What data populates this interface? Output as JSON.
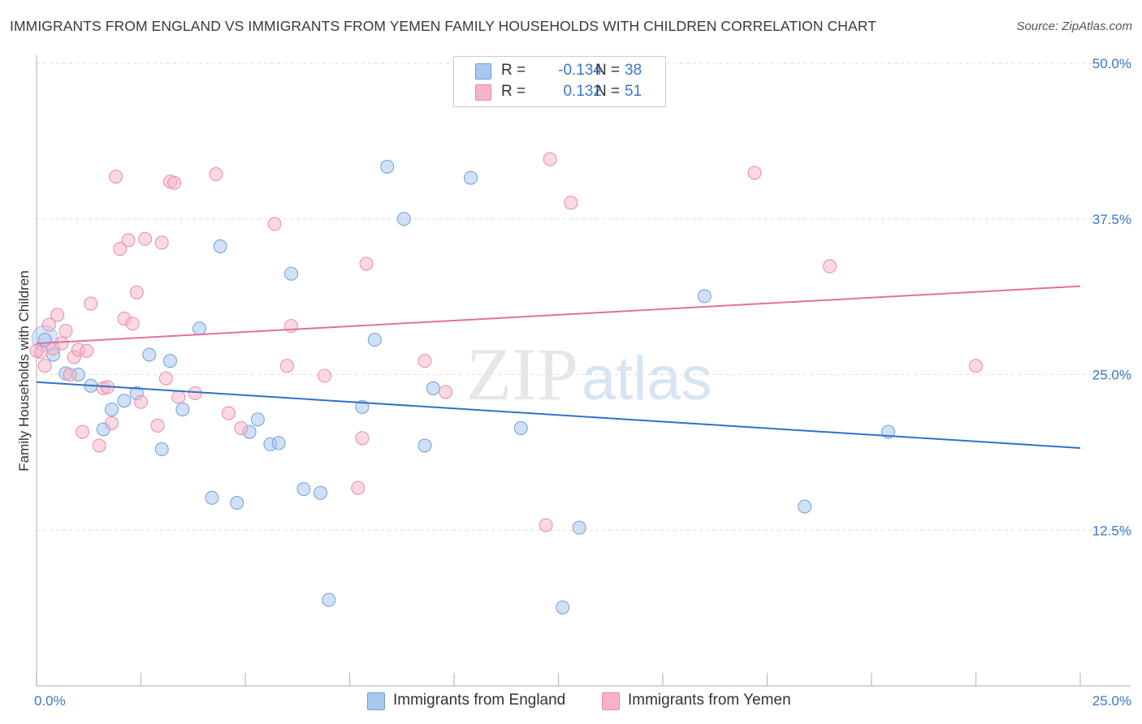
{
  "title": "IMMIGRANTS FROM ENGLAND VS IMMIGRANTS FROM YEMEN FAMILY HOUSEHOLDS WITH CHILDREN CORRELATION CHART",
  "source": "Source: ZipAtlas.com",
  "watermark": {
    "zip": "ZIP",
    "atlas": "atlas"
  },
  "legend": {
    "rows": [
      {
        "r_label": "R =",
        "r_value": "-0.134",
        "n_label": "N =",
        "n_value": "38"
      },
      {
        "r_label": "R =",
        "r_value": "0.132",
        "n_label": "N =",
        "n_value": "51"
      }
    ]
  },
  "bottom_legend": [
    "Immigrants from England",
    "Immigrants from Yemen"
  ],
  "colors": {
    "england_fill": "#a9c8ef",
    "england_stroke": "#6f9fd8",
    "england_line": "#2f72c8",
    "yemen_fill": "#f6b3c8",
    "yemen_stroke": "#e88aa8",
    "yemen_line": "#e0719a",
    "tick_label": "#3a78c9",
    "grid": "#dddddd"
  },
  "chart_data": {
    "type": "scatter",
    "title": "IMMIGRANTS FROM ENGLAND VS IMMIGRANTS FROM YEMEN FAMILY HOUSEHOLDS WITH CHILDREN CORRELATION CHART",
    "xlabel": "",
    "ylabel": "Family Households with Children",
    "xlim": [
      0,
      25
    ],
    "ylim": [
      0,
      50
    ],
    "x_tick_labels": [
      "0.0%",
      "25.0%"
    ],
    "y_ticks": [
      12.5,
      25.0,
      37.5,
      50.0
    ],
    "y_tick_labels": [
      "12.5%",
      "25.0%",
      "37.5%",
      "50.0%"
    ],
    "series": [
      {
        "name": "Immigrants from England",
        "r": -0.134,
        "n": 38,
        "trend": {
          "x": [
            0,
            25
          ],
          "y": [
            24.4,
            19.1
          ]
        },
        "points": [
          [
            0.2,
            27.8
          ],
          [
            0.4,
            26.6
          ],
          [
            0.7,
            25.1
          ],
          [
            1.0,
            25.0
          ],
          [
            1.3,
            24.1
          ],
          [
            1.6,
            20.6
          ],
          [
            1.8,
            22.2
          ],
          [
            2.1,
            22.9
          ],
          [
            2.4,
            23.5
          ],
          [
            2.7,
            26.6
          ],
          [
            3.0,
            19.0
          ],
          [
            3.2,
            26.1
          ],
          [
            3.5,
            22.2
          ],
          [
            3.9,
            28.7
          ],
          [
            4.2,
            15.1
          ],
          [
            4.4,
            35.3
          ],
          [
            4.8,
            14.7
          ],
          [
            5.1,
            20.4
          ],
          [
            5.3,
            21.4
          ],
          [
            5.6,
            19.4
          ],
          [
            5.8,
            19.5
          ],
          [
            6.1,
            33.1
          ],
          [
            6.4,
            15.8
          ],
          [
            6.8,
            15.5
          ],
          [
            7.0,
            6.9
          ],
          [
            7.8,
            22.4
          ],
          [
            8.1,
            27.8
          ],
          [
            8.4,
            41.7
          ],
          [
            8.8,
            37.5
          ],
          [
            9.3,
            19.3
          ],
          [
            9.5,
            23.9
          ],
          [
            10.4,
            40.8
          ],
          [
            11.6,
            20.7
          ],
          [
            12.6,
            6.3
          ],
          [
            13.0,
            12.7
          ],
          [
            16.0,
            31.3
          ],
          [
            18.4,
            14.4
          ],
          [
            20.4,
            20.4
          ]
        ]
      },
      {
        "name": "Immigrants from Yemen",
        "r": 0.132,
        "n": 51,
        "trend": {
          "x": [
            0,
            25
          ],
          "y": [
            27.5,
            32.1
          ]
        },
        "points": [
          [
            0.1,
            26.8
          ],
          [
            0.2,
            25.7
          ],
          [
            0.3,
            29.0
          ],
          [
            0.4,
            27.1
          ],
          [
            0.5,
            29.8
          ],
          [
            0.6,
            27.5
          ],
          [
            0.7,
            28.5
          ],
          [
            0.8,
            25.0
          ],
          [
            0.9,
            26.4
          ],
          [
            1.0,
            27.0
          ],
          [
            1.1,
            20.4
          ],
          [
            1.2,
            26.9
          ],
          [
            1.3,
            30.7
          ],
          [
            1.5,
            19.3
          ],
          [
            1.6,
            23.9
          ],
          [
            1.7,
            24.0
          ],
          [
            1.8,
            21.1
          ],
          [
            1.9,
            40.9
          ],
          [
            2.0,
            35.1
          ],
          [
            2.1,
            29.5
          ],
          [
            2.2,
            35.8
          ],
          [
            2.3,
            29.1
          ],
          [
            2.4,
            31.6
          ],
          [
            2.5,
            22.8
          ],
          [
            2.6,
            35.9
          ],
          [
            2.9,
            20.9
          ],
          [
            3.0,
            35.6
          ],
          [
            3.1,
            24.7
          ],
          [
            3.2,
            40.5
          ],
          [
            3.3,
            40.4
          ],
          [
            3.4,
            23.2
          ],
          [
            3.8,
            23.5
          ],
          [
            4.3,
            41.1
          ],
          [
            4.6,
            21.9
          ],
          [
            4.9,
            20.7
          ],
          [
            5.7,
            37.1
          ],
          [
            6.0,
            25.7
          ],
          [
            6.1,
            28.9
          ],
          [
            6.9,
            24.9
          ],
          [
            7.7,
            15.9
          ],
          [
            7.8,
            19.9
          ],
          [
            7.9,
            33.9
          ],
          [
            9.3,
            26.1
          ],
          [
            9.8,
            23.6
          ],
          [
            12.2,
            12.9
          ],
          [
            12.3,
            42.3
          ],
          [
            12.8,
            38.8
          ],
          [
            17.2,
            41.2
          ],
          [
            19.0,
            33.7
          ],
          [
            22.5,
            25.7
          ],
          [
            0.0,
            26.9
          ]
        ]
      }
    ]
  }
}
